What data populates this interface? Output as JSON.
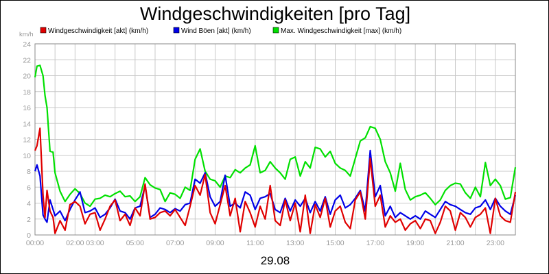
{
  "chart_data": {
    "type": "line",
    "title": "Windgeschwindigkeiten [pro Tag]",
    "ylabel": "km/h",
    "xlabel": "29.08",
    "ylim": [
      0,
      24
    ],
    "xlim": [
      0,
      24
    ],
    "y_ticks": [
      "0",
      "2",
      "4",
      "6",
      "8",
      "10",
      "12",
      "14",
      "16",
      "18",
      "20",
      "22",
      "24"
    ],
    "x_tick_labels": [
      {
        "label": "00:00",
        "hour": 0
      },
      {
        "label": "02:00",
        "hour": 2
      },
      {
        "label": "03:00",
        "hour": 3
      },
      {
        "label": "05:00",
        "hour": 5
      },
      {
        "label": "07:00",
        "hour": 7
      },
      {
        "label": "09:00",
        "hour": 9
      },
      {
        "label": "11:00",
        "hour": 11
      },
      {
        "label": "13:00",
        "hour": 13
      },
      {
        "label": "15:00",
        "hour": 15
      },
      {
        "label": "17:00",
        "hour": 17
      },
      {
        "label": "19:00",
        "hour": 19
      },
      {
        "label": "21:00",
        "hour": 21
      },
      {
        "label": "23:00",
        "hour": 23
      }
    ],
    "grid": true,
    "legend_position": "top",
    "series": [
      {
        "name": "Max. Windgeschwindigkeit [max] (km/h)",
        "color": "#00e000",
        "x": [
          0,
          0.1,
          0.25,
          0.4,
          0.5,
          0.6,
          0.75,
          0.9,
          1,
          1.25,
          1.5,
          1.75,
          2,
          2.25,
          2.5,
          2.75,
          3,
          3.25,
          3.5,
          3.75,
          4,
          4.25,
          4.5,
          4.75,
          5,
          5.25,
          5.5,
          5.75,
          6,
          6.25,
          6.5,
          6.75,
          7,
          7.25,
          7.5,
          7.75,
          8,
          8.25,
          8.5,
          8.75,
          9,
          9.25,
          9.5,
          9.75,
          10,
          10.25,
          10.5,
          10.75,
          11,
          11.25,
          11.5,
          11.75,
          12,
          12.25,
          12.5,
          12.75,
          13,
          13.25,
          13.5,
          13.75,
          14,
          14.25,
          14.5,
          14.75,
          15,
          15.25,
          15.5,
          15.75,
          16,
          16.25,
          16.5,
          16.75,
          17,
          17.25,
          17.5,
          17.75,
          18,
          18.25,
          18.5,
          18.75,
          19,
          19.25,
          19.5,
          19.75,
          20,
          20.25,
          20.5,
          20.75,
          21,
          21.25,
          21.5,
          21.75,
          22,
          22.25,
          22.5,
          22.75,
          23,
          23.25,
          23.5,
          23.75,
          24
        ],
        "values": [
          19.8,
          21.2,
          21.3,
          20.0,
          17.5,
          16.0,
          10.5,
          10.4,
          7.8,
          5.5,
          4.2,
          5.1,
          5.8,
          5.2,
          4.0,
          3.6,
          4.5,
          4.6,
          5.0,
          4.8,
          5.2,
          5.5,
          4.8,
          4.9,
          4.2,
          4.8,
          7.2,
          6.3,
          5.9,
          5.7,
          4.2,
          5.3,
          5.1,
          4.6,
          6.0,
          5.6,
          9.5,
          10.8,
          8.0,
          7.0,
          6.8,
          6.0,
          7.4,
          7.2,
          8.2,
          7.8,
          8.4,
          8.8,
          11.2,
          7.8,
          8.1,
          9.2,
          8.4,
          7.8,
          7.0,
          9.5,
          9.8,
          7.4,
          9.2,
          8.4,
          11.0,
          10.8,
          9.8,
          10.5,
          9.0,
          8.4,
          8.1,
          7.4,
          9.6,
          11.8,
          12.2,
          13.6,
          13.4,
          12.0,
          9.2,
          7.8,
          5.5,
          9.0,
          5.7,
          4.4,
          4.8,
          5.0,
          5.3,
          4.6,
          3.8,
          4.4,
          5.6,
          6.2,
          6.5,
          6.4,
          5.3,
          4.6,
          6.0,
          4.8,
          9.1,
          6.2,
          7.0,
          6.2,
          4.5,
          4.7,
          8.5
        ]
      },
      {
        "name": "Wind Böen [akt] (km/h)",
        "color": "#0000e8",
        "x": [
          0,
          0.1,
          0.25,
          0.4,
          0.5,
          0.6,
          0.75,
          0.9,
          1,
          1.25,
          1.5,
          1.75,
          2,
          2.25,
          2.5,
          2.75,
          3,
          3.25,
          3.5,
          3.75,
          4,
          4.25,
          4.5,
          4.75,
          5,
          5.25,
          5.5,
          5.75,
          6,
          6.25,
          6.5,
          6.75,
          7,
          7.25,
          7.5,
          7.75,
          8,
          8.25,
          8.5,
          8.75,
          9,
          9.25,
          9.5,
          9.75,
          10,
          10.25,
          10.5,
          10.75,
          11,
          11.25,
          11.5,
          11.75,
          12,
          12.25,
          12.5,
          12.75,
          13,
          13.25,
          13.5,
          13.75,
          14,
          14.25,
          14.5,
          14.75,
          15,
          15.25,
          15.5,
          15.75,
          16,
          16.25,
          16.5,
          16.75,
          17,
          17.25,
          17.5,
          17.75,
          18,
          18.25,
          18.5,
          18.75,
          19,
          19.25,
          19.5,
          19.75,
          20,
          20.25,
          20.5,
          20.75,
          21,
          21.25,
          21.5,
          21.75,
          22,
          22.25,
          22.5,
          22.75,
          23,
          23.25,
          23.5,
          23.75,
          24
        ],
        "values": [
          8.0,
          8.8,
          7.4,
          2.5,
          2.0,
          1.6,
          4.4,
          3.2,
          2.4,
          3.0,
          1.8,
          3.2,
          4.4,
          5.4,
          2.8,
          3.0,
          3.4,
          2.2,
          2.6,
          3.4,
          4.5,
          3.0,
          2.8,
          2.0,
          3.4,
          3.6,
          6.2,
          2.2,
          2.6,
          3.4,
          3.2,
          2.8,
          3.3,
          3.0,
          3.8,
          4.0,
          7.0,
          6.5,
          7.8,
          4.8,
          3.6,
          4.2,
          7.5,
          3.6,
          4.0,
          3.4,
          5.4,
          5.0,
          3.2,
          4.6,
          4.8,
          5.2,
          3.2,
          2.8,
          4.6,
          3.0,
          4.4,
          3.6,
          4.6,
          2.8,
          4.2,
          3.0,
          4.8,
          2.6,
          4.4,
          5.0,
          3.4,
          3.8,
          4.6,
          5.6,
          3.0,
          10.6,
          4.8,
          6.2,
          2.4,
          3.6,
          2.2,
          2.8,
          2.4,
          2.0,
          2.4,
          2.0,
          3.0,
          2.6,
          2.2,
          3.2,
          4.2,
          3.8,
          3.6,
          3.2,
          2.8,
          2.6,
          3.4,
          3.6,
          4.4,
          3.2,
          4.6,
          3.6,
          3.0,
          2.6,
          5.0
        ]
      },
      {
        "name": "Windgeschwindigkeit [akt] (km/h)",
        "color": "#e00000",
        "x": [
          0,
          0.1,
          0.25,
          0.4,
          0.5,
          0.6,
          0.75,
          0.9,
          1,
          1.25,
          1.5,
          1.75,
          2,
          2.25,
          2.5,
          2.75,
          3,
          3.25,
          3.5,
          3.75,
          4,
          4.25,
          4.5,
          4.75,
          5,
          5.25,
          5.5,
          5.75,
          6,
          6.25,
          6.5,
          6.75,
          7,
          7.25,
          7.5,
          7.75,
          8,
          8.25,
          8.5,
          8.75,
          9,
          9.25,
          9.5,
          9.75,
          10,
          10.25,
          10.5,
          10.75,
          11,
          11.25,
          11.5,
          11.75,
          12,
          12.25,
          12.5,
          12.75,
          13,
          13.25,
          13.5,
          13.75,
          14,
          14.25,
          14.5,
          14.75,
          15,
          15.25,
          15.5,
          15.75,
          16,
          16.25,
          16.5,
          16.75,
          17,
          17.25,
          17.5,
          17.75,
          18,
          18.25,
          18.5,
          18.75,
          19,
          19.25,
          19.5,
          19.75,
          20,
          20.25,
          20.5,
          20.75,
          21,
          21.25,
          21.5,
          21.75,
          22,
          22.25,
          22.5,
          22.75,
          23,
          23.25,
          23.5,
          23.75,
          24
        ],
        "values": [
          10.6,
          11.2,
          13.4,
          5.0,
          2.2,
          5.6,
          3.0,
          2.2,
          0.2,
          1.8,
          0.6,
          3.8,
          4.2,
          3.6,
          1.4,
          2.6,
          2.8,
          0.6,
          2.0,
          3.6,
          4.4,
          1.8,
          2.6,
          1.2,
          3.4,
          2.4,
          6.4,
          2.0,
          2.2,
          2.8,
          3.0,
          2.4,
          3.2,
          2.2,
          1.2,
          3.6,
          6.2,
          5.0,
          7.6,
          2.8,
          1.4,
          3.8,
          6.2,
          2.4,
          4.6,
          0.4,
          4.2,
          2.8,
          1.0,
          3.6,
          2.0,
          6.2,
          1.8,
          1.2,
          4.4,
          1.8,
          4.0,
          0.4,
          5.0,
          0.2,
          3.8,
          2.2,
          4.6,
          1.0,
          3.0,
          3.6,
          1.6,
          0.8,
          4.4,
          5.4,
          2.0,
          9.6,
          3.6,
          5.0,
          1.0,
          2.4,
          1.6,
          2.0,
          0.6,
          1.4,
          1.8,
          0.8,
          2.0,
          1.8,
          0.2,
          1.6,
          3.6,
          3.0,
          0.6,
          2.8,
          2.2,
          1.0,
          2.2,
          2.6,
          3.4,
          0.2,
          4.6,
          2.4,
          1.8,
          1.6,
          5.4
        ]
      }
    ],
    "legend_order": [
      2,
      1,
      0
    ]
  }
}
